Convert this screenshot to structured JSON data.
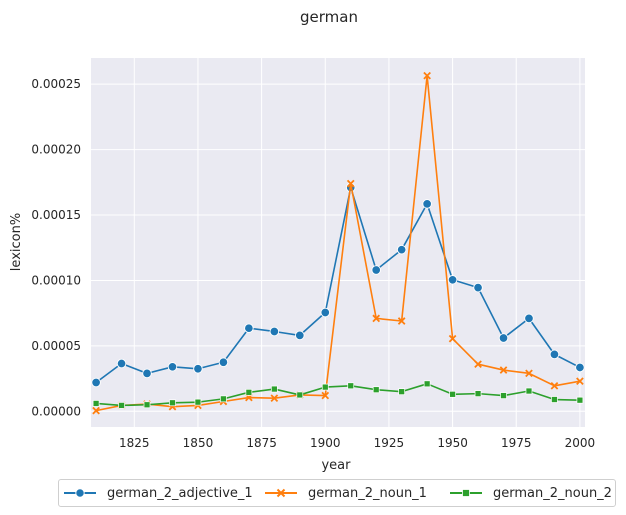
{
  "chart_data": {
    "type": "line",
    "title": "german",
    "xlabel": "year",
    "ylabel": "lexicon%",
    "xlim": [
      1808,
      2002
    ],
    "ylim": [
      -1.2e-05,
      0.00027
    ],
    "xticks": [
      1825,
      1850,
      1875,
      1900,
      1925,
      1950,
      1975,
      2000
    ],
    "xtick_labels": [
      "1825",
      "1850",
      "1875",
      "1900",
      "1925",
      "1950",
      "1975",
      "2000"
    ],
    "yticks": [
      0.0,
      5e-05,
      0.0001,
      0.00015,
      0.0002,
      0.00025
    ],
    "ytick_labels": [
      "0.00000",
      "0.00005",
      "0.00010",
      "0.00015",
      "0.00020",
      "0.00025"
    ],
    "grid": true,
    "legend_position": "bottom-center",
    "x": [
      1810,
      1820,
      1830,
      1840,
      1850,
      1860,
      1870,
      1880,
      1890,
      1900,
      1910,
      1920,
      1930,
      1940,
      1950,
      1960,
      1970,
      1980,
      1990,
      2000
    ],
    "series": [
      {
        "name": "german_2_adjective_1",
        "color": "#1f77b4",
        "marker": "circle",
        "values": [
          2.2e-05,
          3.65e-05,
          2.9e-05,
          3.4e-05,
          3.25e-05,
          3.75e-05,
          6.35e-05,
          6.1e-05,
          5.8e-05,
          7.55e-05,
          0.000171,
          0.000108,
          0.0001235,
          0.0001585,
          0.0001005,
          9.45e-05,
          5.6e-05,
          7.1e-05,
          4.35e-05,
          3.35e-05
        ]
      },
      {
        "name": "german_2_noun_1",
        "color": "#ff7f0e",
        "marker": "x",
        "values": [
          5e-07,
          4.5e-06,
          5.5e-06,
          3.5e-06,
          4.5e-06,
          7.5e-06,
          1.05e-05,
          1e-05,
          1.25e-05,
          1.2e-05,
          0.000174,
          7.1e-05,
          6.9e-05,
          0.0002565,
          5.55e-05,
          3.6e-05,
          3.15e-05,
          2.9e-05,
          1.95e-05,
          2.3e-05
        ]
      },
      {
        "name": "german_2_noun_2",
        "color": "#2ca02c",
        "marker": "square",
        "values": [
          6e-06,
          4.5e-06,
          5e-06,
          6.5e-06,
          7e-06,
          9.5e-06,
          1.45e-05,
          1.7e-05,
          1.25e-05,
          1.85e-05,
          1.95e-05,
          1.65e-05,
          1.5e-05,
          2.1e-05,
          1.3e-05,
          1.35e-05,
          1.2e-05,
          1.55e-05,
          9e-06,
          8.5e-06
        ]
      }
    ]
  }
}
